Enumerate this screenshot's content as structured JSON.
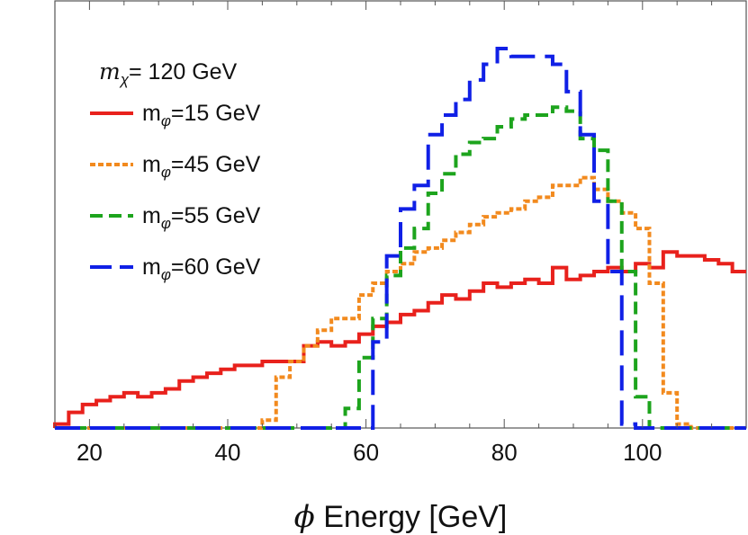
{
  "chart_data": {
    "type": "line",
    "style": "step-histogram",
    "title": "",
    "xlabel_symbol": "ϕ",
    "xlabel": "Energy [GeV]",
    "ylabel": "",
    "xlim": [
      15,
      115
    ],
    "ylim": [
      0,
      1.0
    ],
    "xticks": [
      20,
      40,
      60,
      80,
      100
    ],
    "xtick_labels": [
      "20",
      "40",
      "60",
      "80",
      "100"
    ],
    "grid": false,
    "legend": {
      "placement": "top-left",
      "title_symbol": "m",
      "title_subscript": "χ",
      "title_rest": "= 120 GeV",
      "entry_prefix": "m",
      "entry_subscript": "φ"
    },
    "bin_edges": [
      15,
      17,
      19,
      21,
      23,
      25,
      27,
      29,
      31,
      33,
      35,
      37,
      39,
      41,
      43,
      45,
      47,
      49,
      51,
      53,
      55,
      57,
      59,
      61,
      63,
      65,
      67,
      69,
      71,
      73,
      75,
      77,
      79,
      81,
      83,
      85,
      87,
      89,
      91,
      93,
      95,
      97,
      99,
      101,
      103,
      105,
      107,
      109,
      111,
      113,
      115
    ],
    "series": [
      {
        "name": "m_φ=15 GeV",
        "label_rest": "=15 GeV",
        "color": "#e8211c",
        "dash": "solid",
        "values": [
          0.01,
          0.04,
          0.06,
          0.07,
          0.08,
          0.09,
          0.08,
          0.09,
          0.1,
          0.12,
          0.13,
          0.14,
          0.15,
          0.16,
          0.16,
          0.17,
          0.17,
          0.17,
          0.21,
          0.22,
          0.21,
          0.22,
          0.24,
          0.26,
          0.27,
          0.29,
          0.3,
          0.32,
          0.34,
          0.33,
          0.35,
          0.37,
          0.36,
          0.37,
          0.38,
          0.37,
          0.41,
          0.38,
          0.39,
          0.4,
          0.41,
          0.4,
          0.42,
          0.41,
          0.45,
          0.44,
          0.44,
          0.43,
          0.42,
          0.4
        ]
      },
      {
        "name": "m_φ=45 GeV",
        "label_rest": "=45 GeV",
        "color": "#f28a1e",
        "dash": "short",
        "values": [
          0,
          0,
          0,
          0,
          0,
          0,
          0,
          0,
          0,
          0,
          0,
          0,
          0,
          0,
          0,
          0.02,
          0.13,
          0.17,
          0.21,
          0.25,
          0.28,
          0.28,
          0.34,
          0.37,
          0.4,
          0.42,
          0.45,
          0.46,
          0.48,
          0.5,
          0.52,
          0.54,
          0.55,
          0.56,
          0.58,
          0.59,
          0.62,
          0.62,
          0.64,
          0.61,
          0.58,
          0.55,
          0.51,
          0.37,
          0.09,
          0.01,
          0,
          0,
          0,
          0
        ]
      },
      {
        "name": "m_φ=55 GeV",
        "label_rest": "=55 GeV",
        "color": "#1da41d",
        "dash": "medium",
        "values": [
          0,
          0,
          0,
          0,
          0,
          0,
          0,
          0,
          0,
          0,
          0,
          0,
          0,
          0,
          0,
          0,
          0,
          0,
          0,
          0,
          0,
          0.05,
          0.18,
          0.28,
          0.39,
          0.46,
          0.51,
          0.6,
          0.65,
          0.7,
          0.73,
          0.74,
          0.77,
          0.79,
          0.8,
          0.8,
          0.82,
          0.81,
          0.74,
          0.71,
          0.58,
          0.4,
          0.08,
          0,
          0,
          0,
          0,
          0,
          0,
          0
        ]
      },
      {
        "name": "m_φ=60 GeV",
        "label_rest": "=60 GeV",
        "color": "#1020e6",
        "dash": "long",
        "values": [
          0,
          0,
          0,
          0,
          0,
          0,
          0,
          0,
          0,
          0,
          0,
          0,
          0,
          0,
          0,
          0,
          0,
          0,
          0,
          0,
          0,
          0,
          0,
          0.22,
          0.44,
          0.56,
          0.62,
          0.75,
          0.8,
          0.84,
          0.89,
          0.93,
          0.97,
          0.95,
          0.95,
          0.95,
          0.93,
          0.86,
          0.75,
          0.58,
          0.4,
          0.01,
          0,
          0,
          0,
          0,
          0,
          0,
          0,
          0
        ]
      }
    ]
  }
}
